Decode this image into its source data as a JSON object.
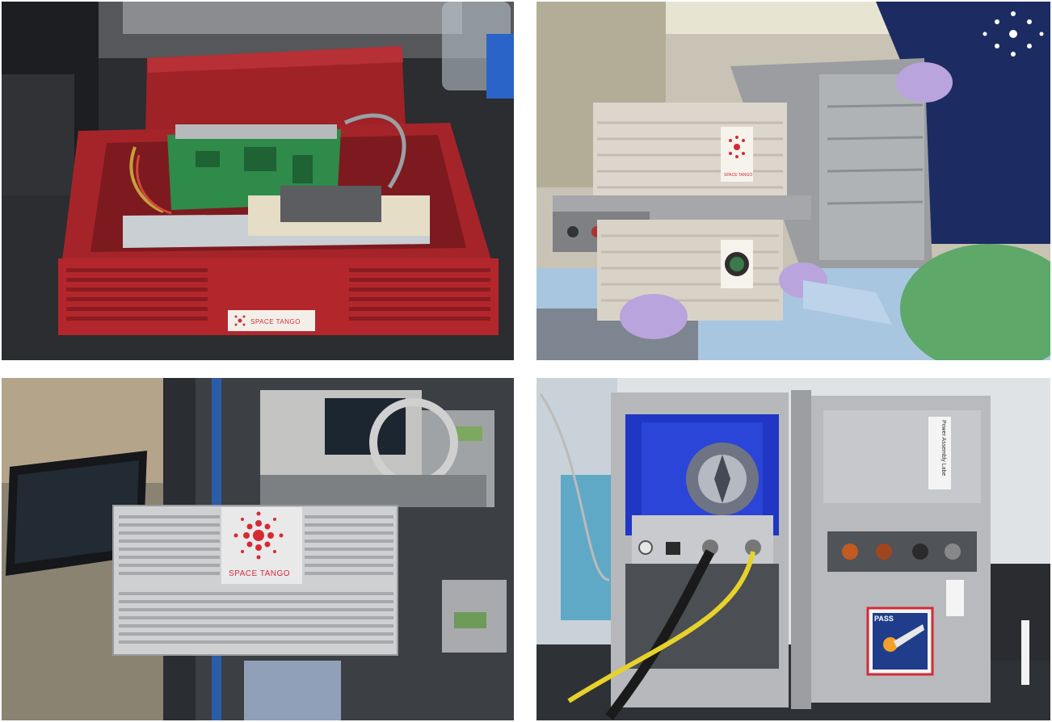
{
  "panels": {
    "top_left": {
      "label": "SPACE TANGO"
    },
    "top_right": {
      "label": "SPACE TANGO"
    },
    "bottom_left": {
      "label": "SPACE TANGO"
    },
    "bottom_right": {
      "sticker_text": "PASS",
      "side_label": "Power Assembly Labe"
    }
  },
  "colors": {
    "brand_red": "#d42a35",
    "enclosure_red": "#b2262a",
    "aluminum": "#c9c9c9",
    "cube_beige": "#dcd6cc",
    "glove_purple": "#b9a4dd",
    "lab_coat_navy": "#1c2c63",
    "led_blue": "#2b45d8",
    "cable_yellow": "#e6d22a"
  }
}
